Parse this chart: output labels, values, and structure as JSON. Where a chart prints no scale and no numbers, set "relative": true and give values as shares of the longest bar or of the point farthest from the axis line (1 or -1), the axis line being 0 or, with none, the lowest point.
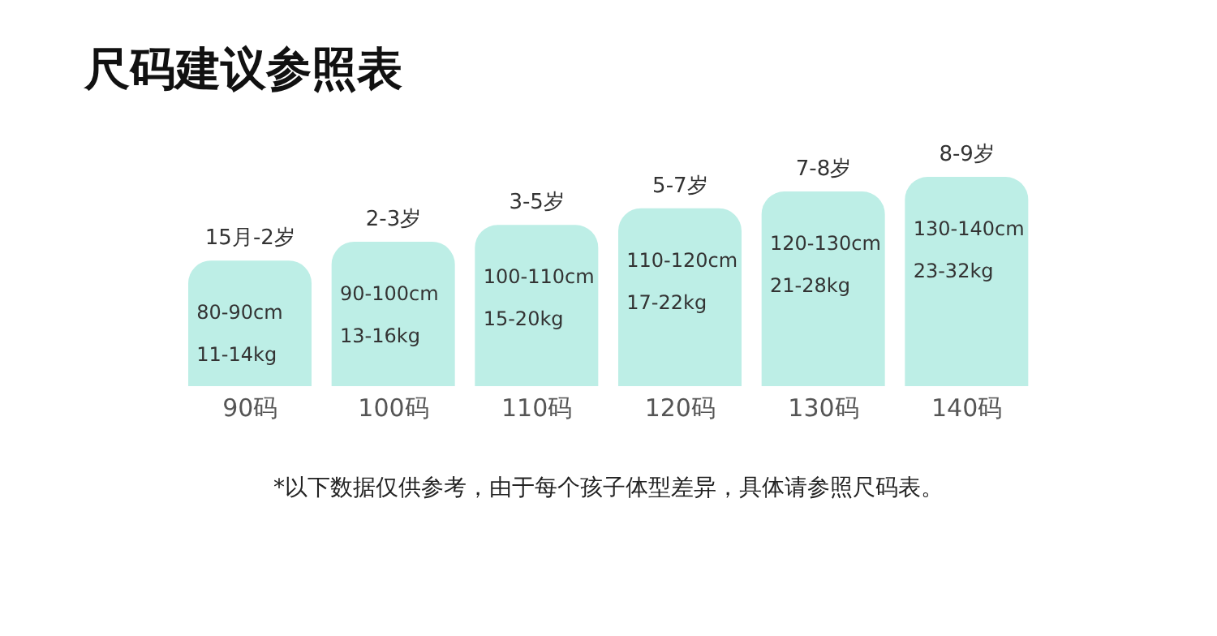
{
  "chart_data": {
    "type": "bar",
    "title": "尺码建议参照表",
    "relative": true,
    "categories": [
      "90码",
      "100码",
      "110码",
      "120码",
      "130码",
      "140码"
    ],
    "values": [
      0.6,
      0.69,
      0.77,
      0.85,
      0.93,
      1
    ],
    "color": "#bdeee6",
    "grid": false,
    "legend": false,
    "annotations": [
      "15月-2岁",
      "80-90cm",
      "11-14kg",
      "2-3岁",
      "90-100cm",
      "13-16kg",
      "3-5岁",
      "100-110cm",
      "15-20kg",
      "5-7岁",
      "110-120cm",
      "17-22kg",
      "7-8岁",
      "120-130cm",
      "21-28kg",
      "8-9岁",
      "130-140cm",
      "23-32kg",
      "*以下数据仅供参考，由于每个孩子体型差异，具体请参照尺码表。"
    ]
  }
}
